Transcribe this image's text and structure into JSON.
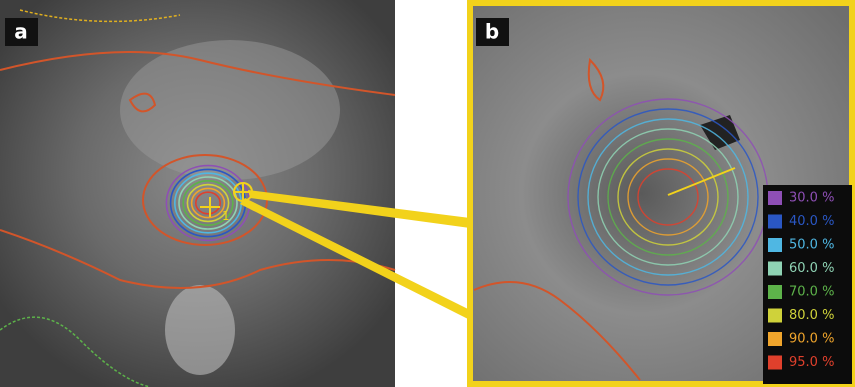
{
  "panels": [
    {
      "label": "a",
      "marker": "1"
    },
    {
      "label": "b"
    }
  ],
  "legend": [
    {
      "label": "30.0 %",
      "color": "#8e4fb5"
    },
    {
      "label": "40.0 %",
      "color": "#2a57c4"
    },
    {
      "label": "50.0 %",
      "color": "#4fb7e3"
    },
    {
      "label": "60.0 %",
      "color": "#8fd3b4"
    },
    {
      "label": "70.0 %",
      "color": "#5db34a"
    },
    {
      "label": "80.0 %",
      "color": "#cfd23a"
    },
    {
      "label": "90.0 %",
      "color": "#f0a52c"
    },
    {
      "label": "95.0 %",
      "color": "#e0402c"
    }
  ]
}
